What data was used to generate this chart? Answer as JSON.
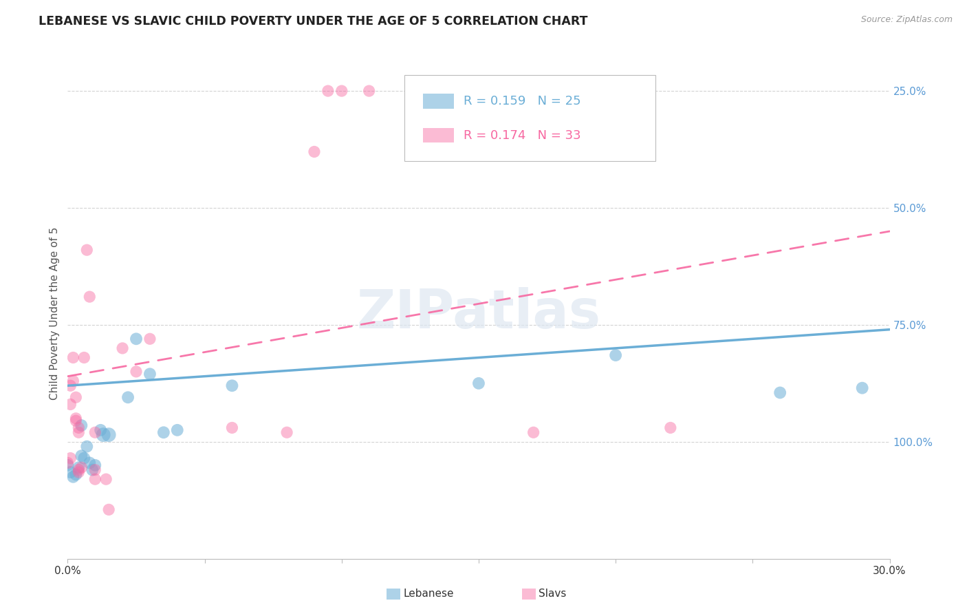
{
  "title": "LEBANESE VS SLAVIC CHILD POVERTY UNDER THE AGE OF 5 CORRELATION CHART",
  "source": "Source: ZipAtlas.com",
  "ylabel": "Child Poverty Under the Age of 5",
  "lebanese_points": [
    [
      0.0,
      0.2
    ],
    [
      0.001,
      0.185
    ],
    [
      0.002,
      0.175
    ],
    [
      0.003,
      0.18
    ],
    [
      0.004,
      0.195
    ],
    [
      0.005,
      0.22
    ],
    [
      0.005,
      0.285
    ],
    [
      0.006,
      0.215
    ],
    [
      0.007,
      0.24
    ],
    [
      0.008,
      0.205
    ],
    [
      0.009,
      0.19
    ],
    [
      0.01,
      0.2
    ],
    [
      0.012,
      0.275
    ],
    [
      0.013,
      0.265
    ],
    [
      0.015,
      0.265
    ],
    [
      0.022,
      0.345
    ],
    [
      0.025,
      0.47
    ],
    [
      0.03,
      0.395
    ],
    [
      0.035,
      0.27
    ],
    [
      0.04,
      0.275
    ],
    [
      0.06,
      0.37
    ],
    [
      0.15,
      0.375
    ],
    [
      0.2,
      0.435
    ],
    [
      0.26,
      0.355
    ],
    [
      0.29,
      0.365
    ]
  ],
  "slavs_points": [
    [
      0.0,
      0.205
    ],
    [
      0.001,
      0.215
    ],
    [
      0.001,
      0.33
    ],
    [
      0.001,
      0.37
    ],
    [
      0.002,
      0.43
    ],
    [
      0.002,
      0.38
    ],
    [
      0.003,
      0.345
    ],
    [
      0.003,
      0.3
    ],
    [
      0.003,
      0.295
    ],
    [
      0.004,
      0.28
    ],
    [
      0.004,
      0.27
    ],
    [
      0.004,
      0.19
    ],
    [
      0.004,
      0.185
    ],
    [
      0.005,
      0.195
    ],
    [
      0.006,
      0.43
    ],
    [
      0.007,
      0.66
    ],
    [
      0.008,
      0.56
    ],
    [
      0.01,
      0.27
    ],
    [
      0.01,
      0.19
    ],
    [
      0.01,
      0.17
    ],
    [
      0.014,
      0.17
    ],
    [
      0.015,
      0.105
    ],
    [
      0.02,
      0.45
    ],
    [
      0.025,
      0.4
    ],
    [
      0.03,
      0.47
    ],
    [
      0.06,
      0.28
    ],
    [
      0.08,
      0.27
    ],
    [
      0.09,
      0.87
    ],
    [
      0.095,
      1.0
    ],
    [
      0.1,
      1.0
    ],
    [
      0.11,
      1.0
    ],
    [
      0.17,
      0.27
    ],
    [
      0.22,
      0.28
    ]
  ],
  "lebanese_color": "#6baed6",
  "slavs_color": "#f768a1",
  "lebanese_alpha": 0.55,
  "slavs_alpha": 0.45,
  "background_color": "#ffffff",
  "watermark": "ZIPatlas",
  "lebanese_R": 0.159,
  "lebanese_N": 25,
  "slavs_R": 0.174,
  "slavs_N": 33,
  "leb_line": [
    0.0,
    0.3,
    0.37,
    0.49
  ],
  "slav_line": [
    0.0,
    0.3,
    0.39,
    0.7
  ]
}
